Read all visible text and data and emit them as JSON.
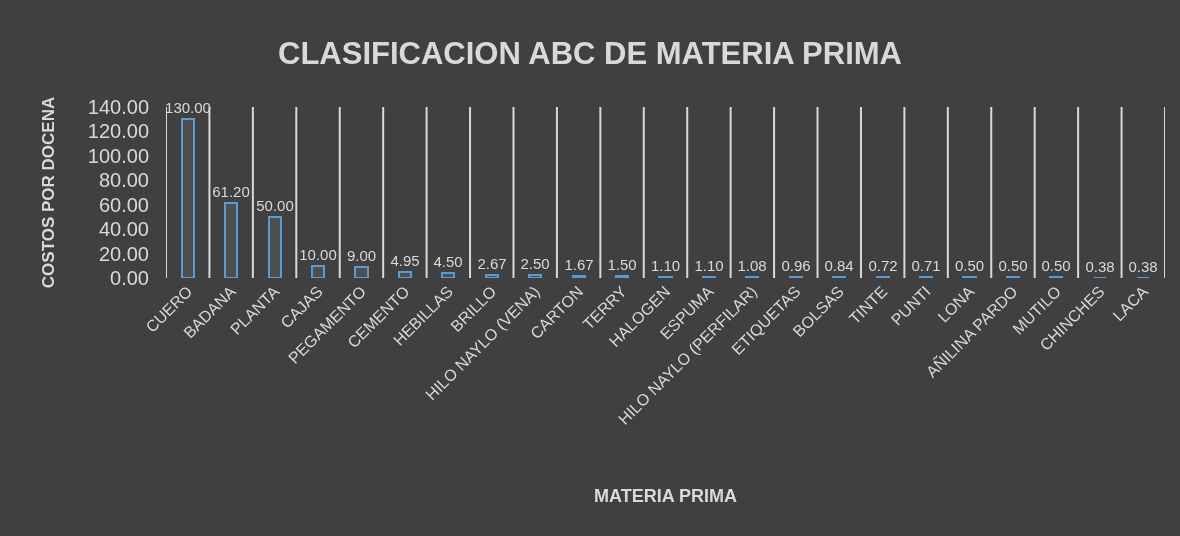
{
  "chart_data": {
    "type": "bar",
    "title": "CLASIFICACION ABC DE MATERIA PRIMA",
    "xlabel": "MATERIA PRIMA",
    "ylabel": "COSTOS POR DOCENA",
    "categories": [
      "CUERO",
      "BADANA",
      "PLANTA",
      "CAJAS",
      "PEGAMENTO",
      "CEMENTO",
      "HEBILLAS",
      "BRILLO",
      "HILO NAYLO (VENA)",
      "CARTON",
      "TERRY",
      "HALOGEN",
      "ESPUMA",
      "HILO NAYLO (PERFILAR)",
      "ETIQUETAS",
      "BOLSAS",
      "TINTE",
      "PUNTI",
      "LONA",
      "AÑILINA PARDO",
      "MUTILO",
      "CHINCHES",
      "LACA"
    ],
    "values": [
      130,
      61.2,
      50,
      10,
      9,
      4.95,
      4.5,
      2.67,
      2.5,
      1.67,
      1.5,
      1.1,
      1.1,
      1.08,
      0.96,
      0.84,
      0.72,
      0.71,
      0.5,
      0.5,
      0.5,
      0.38,
      0.38
    ],
    "value_labels": [
      "130.00",
      "61.20",
      "50.00",
      "10.00",
      "9.00",
      "4.95",
      "4.50",
      "2.67",
      "2.50",
      "1.67",
      "1.50",
      "1.10",
      "1.10",
      "1.08",
      "0.96",
      "0.84",
      "0.72",
      "0.71",
      "0.50",
      "0.50",
      "0.50",
      "0.38",
      "0.38"
    ],
    "color": "#5b9bd5",
    "ylim": [
      0,
      140
    ],
    "yticks": [
      {
        "value": 0,
        "label": "0.00"
      },
      {
        "value": 20,
        "label": "20.00"
      },
      {
        "value": 40,
        "label": "40.00"
      },
      {
        "value": 60,
        "label": "60.00"
      },
      {
        "value": 80,
        "label": "80.00"
      },
      {
        "value": 100,
        "label": "100.00"
      },
      {
        "value": 120,
        "label": "120.00"
      },
      {
        "value": 140,
        "label": "140.00"
      }
    ],
    "grid": "x"
  }
}
